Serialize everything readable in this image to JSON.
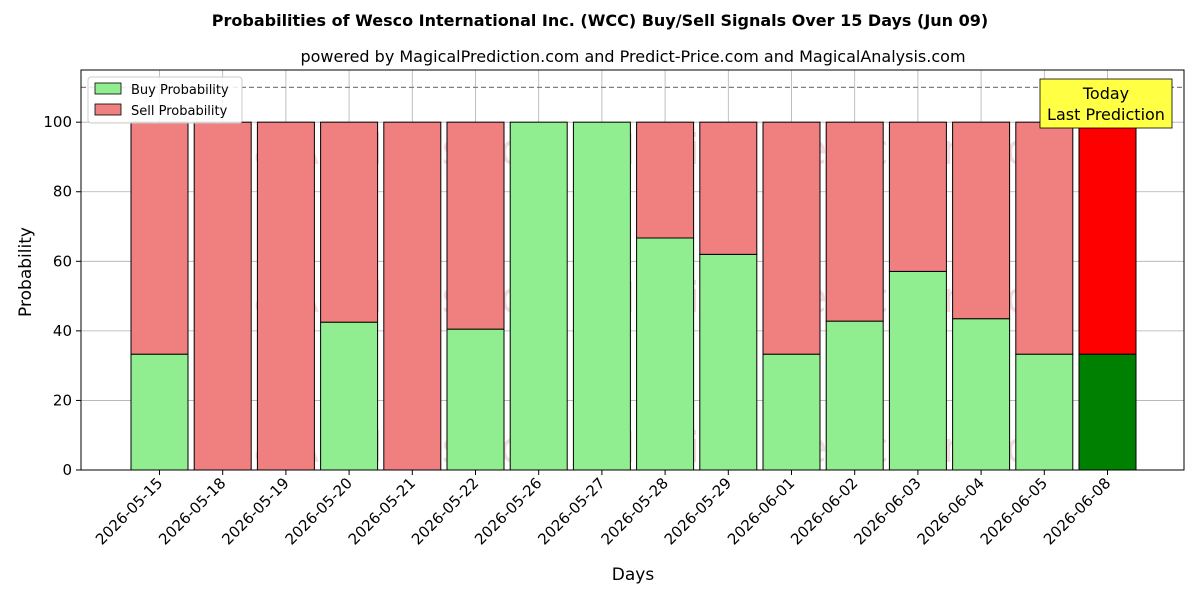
{
  "chart_data": {
    "type": "bar",
    "stacked": true,
    "title": "Probabilities of Wesco International Inc. (WCC) Buy/Sell Signals Over 15 Days (Jun 09)",
    "subtitle": "powered by MagicalPrediction.com and Predict-Price.com and MagicalAnalysis.com",
    "xlabel": "Days",
    "ylabel": "Probability",
    "ylim": [
      0,
      115
    ],
    "yticks": [
      0,
      20,
      40,
      60,
      80,
      100
    ],
    "grid": true,
    "legend_position": "top-left",
    "reference_line": 110,
    "categories": [
      "2026-05-15",
      "2026-05-18",
      "2026-05-19",
      "2026-05-20",
      "2026-05-21",
      "2026-05-22",
      "2026-05-26",
      "2026-05-27",
      "2026-05-28",
      "2026-05-29",
      "2026-06-01",
      "2026-06-02",
      "2026-06-03",
      "2026-06-04",
      "2026-06-05",
      "2026-06-08"
    ],
    "series": [
      {
        "name": "Buy Probability",
        "values": [
          33.3,
          0,
          0,
          42.5,
          0,
          40.5,
          100,
          100,
          66.7,
          62,
          33.3,
          42.8,
          57.1,
          43.5,
          33.3,
          33.3
        ]
      },
      {
        "name": "Sell Probability",
        "values": [
          66.7,
          100,
          100,
          57.5,
          100,
          59.5,
          0,
          0,
          33.3,
          38,
          66.7,
          57.2,
          42.9,
          56.5,
          66.7,
          66.7
        ]
      }
    ],
    "colors": {
      "buy": "#90ee90",
      "sell": "#f08080",
      "buy_highlight": "#008000",
      "sell_highlight": "#ff0000",
      "annotation_bg": "#ffff44"
    },
    "highlight_index": 15,
    "annotation": "Today\nLast Prediction",
    "watermarks": [
      "MagicalAnalysis.com",
      "MagicalPrediction.com"
    ]
  }
}
